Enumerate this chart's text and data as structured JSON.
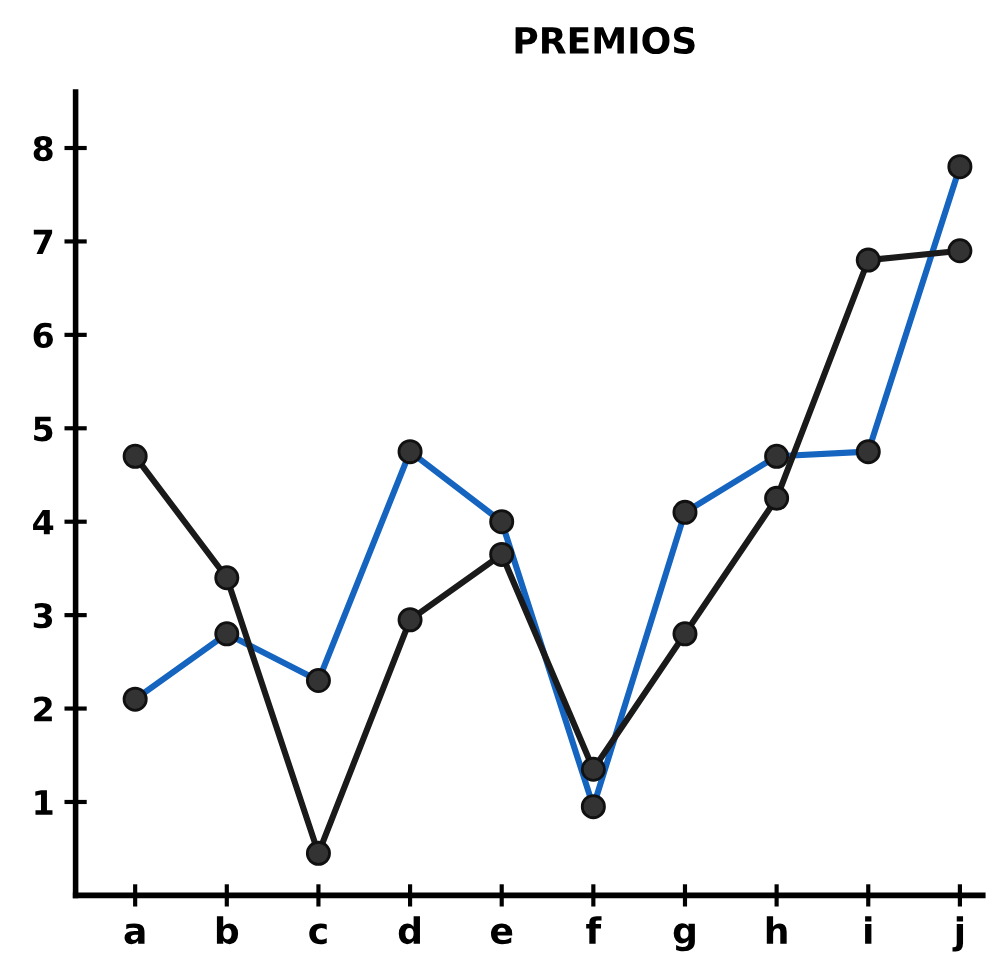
{
  "chart_data": {
    "type": "line",
    "title": "PREMIOS",
    "categories": [
      "a",
      "b",
      "c",
      "d",
      "e",
      "f",
      "g",
      "h",
      "i",
      "j"
    ],
    "series": [
      {
        "color": "#1565c0",
        "values": [
          2.1,
          2.8,
          2.3,
          4.75,
          4.0,
          0.95,
          4.1,
          4.7,
          4.75,
          7.8
        ]
      },
      {
        "color": "#1a1a1a",
        "values": [
          4.7,
          3.4,
          0.45,
          2.95,
          3.65,
          1.35,
          2.8,
          4.25,
          6.8,
          6.9
        ]
      }
    ],
    "ylim": [
      0,
      8.6
    ],
    "yticks": [
      1,
      2,
      3,
      4,
      5,
      6,
      7,
      8
    ],
    "marker": "circle",
    "line_style": "solid",
    "grid": false
  }
}
